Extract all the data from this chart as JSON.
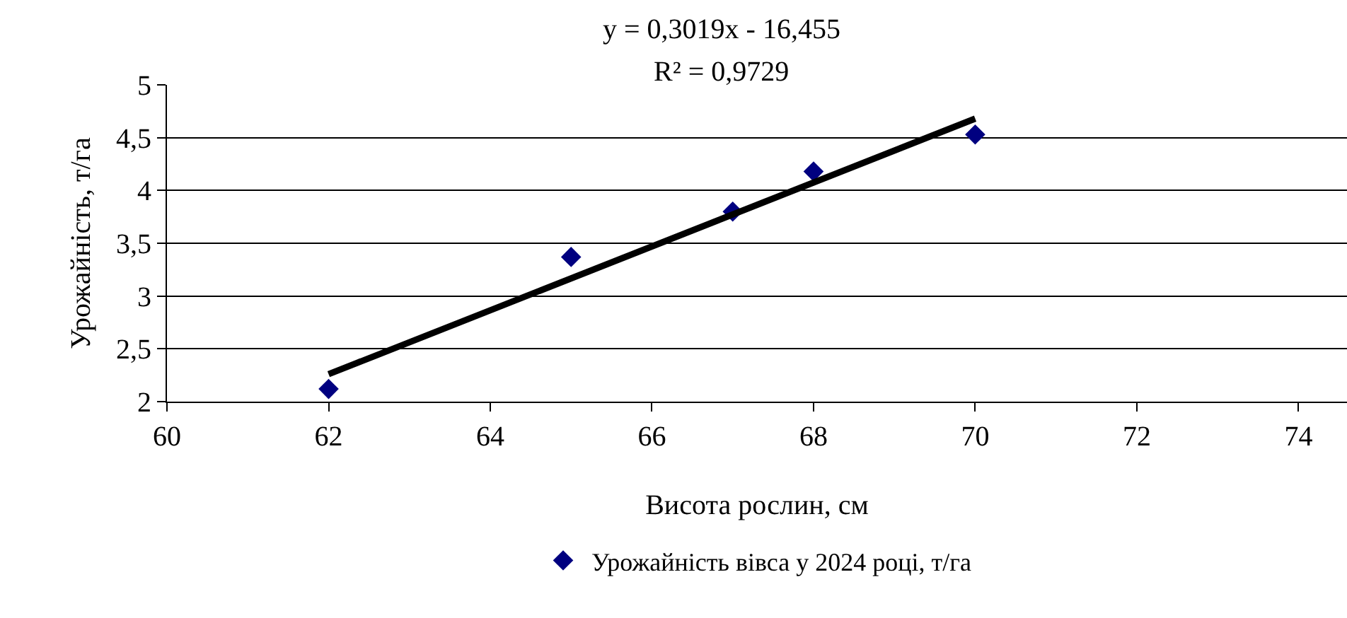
{
  "chart_data": {
    "type": "scatter",
    "xlabel": "Висота рослин, см",
    "ylabel": "Урожайність, т/га",
    "annotations": [
      "y = 0,3019x - 16,455",
      "R² = 0,9729"
    ],
    "series": [
      {
        "name": "Урожайність вівса у 2024 році, т/га",
        "color": "#000080",
        "x": [
          62,
          65,
          67,
          68,
          70
        ],
        "values": [
          2.12,
          3.37,
          3.8,
          4.18,
          4.53
        ],
        "marker": "diamond"
      },
      {
        "type": "line",
        "color": "#000000",
        "x": [
          62,
          70
        ],
        "values": [
          2.26,
          4.68
        ],
        "line_style": "solid"
      }
    ],
    "xlim": [
      60,
      74.6
    ],
    "xticks": [
      60,
      62,
      64,
      66,
      68,
      70,
      72,
      74
    ],
    "ylim": [
      2,
      5
    ],
    "yticks": [
      {
        "value": 2,
        "label": "2"
      },
      {
        "value": 2.5,
        "label": "2,5"
      },
      {
        "value": 3,
        "label": "3"
      },
      {
        "value": 3.5,
        "label": "3,5"
      },
      {
        "value": 4,
        "label": "4"
      },
      {
        "value": 4.5,
        "label": "4,5"
      },
      {
        "value": 5,
        "label": "5"
      }
    ],
    "grid": "y",
    "legend": "bottom"
  }
}
